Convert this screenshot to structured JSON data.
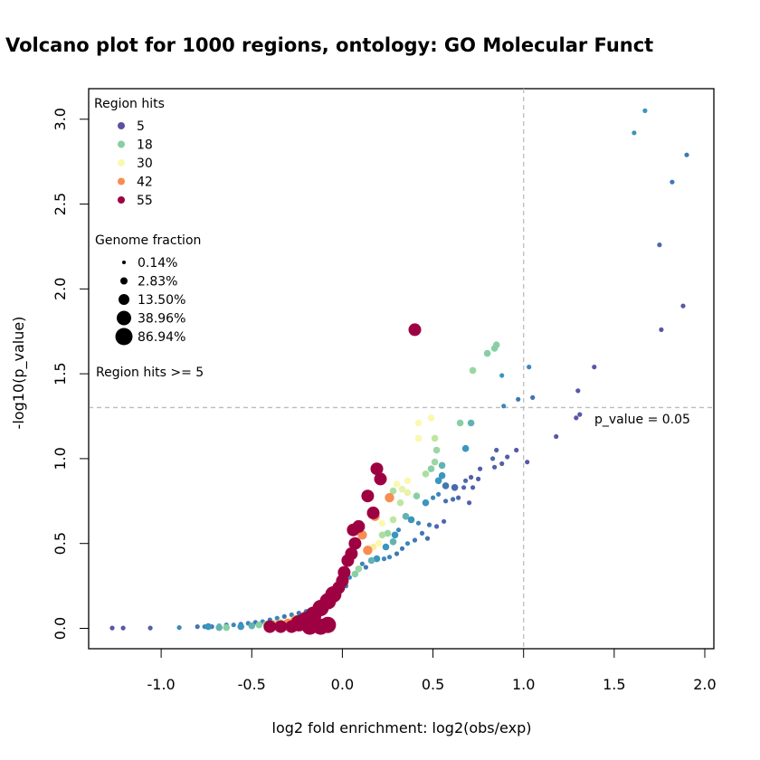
{
  "chart_data": {
    "type": "scatter",
    "title": "Volcano plot for 1000 regions, ontology: GO Molecular Funct",
    "xlabel": "log2 fold enrichment: log2(obs/exp)",
    "ylabel": "-log10(p_value)",
    "xlim": [
      -1.4,
      2.05
    ],
    "ylim": [
      -0.12,
      3.18
    ],
    "xticks": [
      -1.0,
      -0.5,
      0.0,
      0.5,
      1.0,
      1.5,
      2.0
    ],
    "xtick_labels": [
      "-1.0",
      "-0.5",
      "0.0",
      "0.5",
      "1.0",
      "1.5",
      "2.0"
    ],
    "yticks": [
      0.0,
      0.5,
      1.0,
      1.5,
      2.0,
      2.5,
      3.0
    ],
    "ytick_labels": [
      "0.0",
      "0.5",
      "1.0",
      "1.5",
      "2.0",
      "2.5",
      "3.0"
    ],
    "grid": false,
    "reference_lines": [
      {
        "orientation": "horizontal",
        "value": 1.30103,
        "style": "dashed",
        "color": "#bdbdbd",
        "label": "p_value = 0.05"
      },
      {
        "orientation": "vertical",
        "value": 1.0,
        "style": "dashed",
        "color": "#bdbdbd"
      }
    ],
    "legend_position": "top-left",
    "color_legend": {
      "title": "Region hits",
      "entries": [
        {
          "label": "5",
          "color": "#5E4FA2"
        },
        {
          "label": "18",
          "color": "#88CFA4"
        },
        {
          "label": "30",
          "color": "#FBF8B0"
        },
        {
          "label": "42",
          "color": "#F88D52"
        },
        {
          "label": "55",
          "color": "#9E0142"
        }
      ]
    },
    "size_legend": {
      "title": "Genome fraction",
      "entries": [
        {
          "label": "0.14%",
          "size_class": 1
        },
        {
          "label": "2.83%",
          "size_class": 2
        },
        {
          "label": "13.50%",
          "size_class": 3
        },
        {
          "label": "38.96%",
          "size_class": 4
        },
        {
          "label": "86.94%",
          "size_class": 5
        }
      ]
    },
    "filter_note": "Region hits >= 5",
    "points_columns": [
      "log2_fold_enrichment",
      "neg_log10_p",
      "region_hits",
      "genome_fraction_class"
    ],
    "points": [
      [
        1.67,
        3.05,
        14,
        1
      ],
      [
        1.61,
        2.92,
        14,
        1
      ],
      [
        1.9,
        2.79,
        10,
        1
      ],
      [
        1.82,
        2.63,
        10,
        1
      ],
      [
        1.75,
        2.26,
        8,
        1
      ],
      [
        1.88,
        1.9,
        6,
        1
      ],
      [
        1.76,
        1.76,
        6,
        1
      ],
      [
        1.39,
        1.54,
        6,
        1
      ],
      [
        1.3,
        1.4,
        6,
        1
      ],
      [
        1.31,
        1.26,
        6,
        1
      ],
      [
        1.29,
        1.24,
        6,
        1
      ],
      [
        1.18,
        1.13,
        6,
        1
      ],
      [
        1.03,
        1.54,
        12,
        1
      ],
      [
        1.05,
        1.36,
        9,
        1
      ],
      [
        0.97,
        1.35,
        10,
        1
      ],
      [
        0.89,
        1.31,
        12,
        1
      ],
      [
        0.88,
        1.49,
        14,
        1
      ],
      [
        0.85,
        1.67,
        18,
        2
      ],
      [
        0.84,
        1.65,
        18,
        2
      ],
      [
        0.8,
        1.62,
        18,
        2
      ],
      [
        0.72,
        1.52,
        20,
        2
      ],
      [
        0.4,
        1.76,
        55,
        4
      ],
      [
        0.49,
        1.24,
        30,
        2
      ],
      [
        0.42,
        1.21,
        30,
        2
      ],
      [
        0.42,
        1.12,
        30,
        2
      ],
      [
        0.51,
        1.12,
        24,
        2
      ],
      [
        0.65,
        1.21,
        18,
        2
      ],
      [
        0.71,
        1.21,
        16,
        2
      ],
      [
        0.52,
        1.05,
        20,
        2
      ],
      [
        0.68,
        1.06,
        14,
        2
      ],
      [
        0.51,
        0.98,
        20,
        2
      ],
      [
        0.55,
        0.96,
        16,
        2
      ],
      [
        0.49,
        0.94,
        18,
        2
      ],
      [
        0.46,
        0.91,
        22,
        2
      ],
      [
        0.55,
        0.9,
        14,
        2
      ],
      [
        0.53,
        0.87,
        14,
        2
      ],
      [
        0.57,
        0.84,
        10,
        2
      ],
      [
        0.62,
        0.83,
        8,
        2
      ],
      [
        0.85,
        1.05,
        7,
        1
      ],
      [
        0.91,
        1.01,
        7,
        1
      ],
      [
        0.96,
        1.05,
        6,
        1
      ],
      [
        0.83,
        1.0,
        8,
        1
      ],
      [
        0.88,
        0.97,
        7,
        1
      ],
      [
        0.84,
        0.95,
        7,
        1
      ],
      [
        0.76,
        0.94,
        7,
        1
      ],
      [
        1.02,
        0.98,
        6,
        1
      ],
      [
        0.71,
        0.89,
        7,
        1
      ],
      [
        0.68,
        0.87,
        8,
        1
      ],
      [
        0.75,
        0.88,
        7,
        1
      ],
      [
        0.67,
        0.83,
        8,
        1
      ],
      [
        0.72,
        0.83,
        7,
        1
      ],
      [
        0.64,
        0.77,
        8,
        1
      ],
      [
        0.7,
        0.74,
        7,
        1
      ],
      [
        0.61,
        0.76,
        9,
        1
      ],
      [
        0.57,
        0.75,
        9,
        1
      ],
      [
        0.53,
        0.79,
        12,
        1
      ],
      [
        0.5,
        0.77,
        12,
        1
      ],
      [
        0.46,
        0.74,
        14,
        2
      ],
      [
        0.41,
        0.78,
        18,
        2
      ],
      [
        0.36,
        0.87,
        30,
        2
      ],
      [
        0.36,
        0.8,
        28,
        2
      ],
      [
        0.33,
        0.82,
        28,
        2
      ],
      [
        0.3,
        0.85,
        30,
        2
      ],
      [
        0.28,
        0.81,
        22,
        2
      ],
      [
        0.26,
        0.77,
        42,
        3
      ],
      [
        0.32,
        0.74,
        24,
        2
      ],
      [
        0.21,
        0.88,
        55,
        4
      ],
      [
        0.19,
        0.94,
        55,
        4
      ],
      [
        0.14,
        0.78,
        55,
        4
      ],
      [
        0.17,
        0.68,
        55,
        4
      ],
      [
        0.18,
        0.66,
        42,
        3
      ],
      [
        0.22,
        0.62,
        30,
        2
      ],
      [
        0.28,
        0.64,
        24,
        2
      ],
      [
        0.35,
        0.66,
        16,
        2
      ],
      [
        0.38,
        0.64,
        14,
        2
      ],
      [
        0.42,
        0.62,
        12,
        1
      ],
      [
        0.48,
        0.61,
        10,
        1
      ],
      [
        0.52,
        0.6,
        8,
        1
      ],
      [
        0.56,
        0.63,
        8,
        1
      ],
      [
        0.44,
        0.56,
        10,
        1
      ],
      [
        0.47,
        0.53,
        9,
        1
      ],
      [
        0.4,
        0.52,
        10,
        1
      ],
      [
        0.36,
        0.5,
        12,
        1
      ],
      [
        0.33,
        0.47,
        10,
        1
      ],
      [
        0.3,
        0.44,
        10,
        1
      ],
      [
        0.26,
        0.42,
        12,
        1
      ],
      [
        0.23,
        0.41,
        12,
        1
      ],
      [
        0.19,
        0.41,
        14,
        2
      ],
      [
        0.16,
        0.4,
        16,
        2
      ],
      [
        0.24,
        0.48,
        14,
        2
      ],
      [
        0.28,
        0.51,
        16,
        2
      ],
      [
        0.29,
        0.55,
        14,
        2
      ],
      [
        0.31,
        0.58,
        12,
        1
      ],
      [
        0.25,
        0.56,
        20,
        2
      ],
      [
        0.22,
        0.55,
        22,
        2
      ],
      [
        0.2,
        0.5,
        30,
        2
      ],
      [
        0.17,
        0.48,
        32,
        2
      ],
      [
        0.14,
        0.46,
        42,
        3
      ],
      [
        0.11,
        0.55,
        42,
        3
      ],
      [
        0.06,
        0.58,
        55,
        4
      ],
      [
        0.09,
        0.6,
        55,
        4
      ],
      [
        0.07,
        0.5,
        55,
        4
      ],
      [
        0.05,
        0.44,
        55,
        4
      ],
      [
        0.03,
        0.4,
        55,
        4
      ],
      [
        0.01,
        0.33,
        55,
        4
      ],
      [
        0.0,
        0.28,
        55,
        4
      ],
      [
        -0.02,
        0.24,
        55,
        4
      ],
      [
        -0.05,
        0.2,
        55,
        5
      ],
      [
        -0.08,
        0.16,
        55,
        5
      ],
      [
        -0.12,
        0.12,
        55,
        5
      ],
      [
        -0.16,
        0.08,
        55,
        5
      ],
      [
        -0.2,
        0.05,
        55,
        5
      ],
      [
        -0.24,
        0.03,
        55,
        5
      ],
      [
        -0.18,
        0.01,
        55,
        5
      ],
      [
        -0.12,
        0.01,
        55,
        5
      ],
      [
        -0.08,
        0.02,
        55,
        5
      ],
      [
        -0.28,
        0.01,
        55,
        4
      ],
      [
        -0.34,
        0.01,
        55,
        4
      ],
      [
        -0.4,
        0.01,
        55,
        4
      ],
      [
        0.09,
        0.35,
        20,
        2
      ],
      [
        0.07,
        0.32,
        18,
        2
      ],
      [
        0.11,
        0.38,
        12,
        1
      ],
      [
        0.13,
        0.36,
        10,
        1
      ],
      [
        0.04,
        0.3,
        12,
        1
      ],
      [
        0.02,
        0.25,
        10,
        1
      ],
      [
        -0.01,
        0.22,
        12,
        1
      ],
      [
        -0.04,
        0.18,
        10,
        1
      ],
      [
        -0.08,
        0.15,
        12,
        1
      ],
      [
        -0.12,
        0.13,
        14,
        1
      ],
      [
        -0.16,
        0.11,
        10,
        1
      ],
      [
        -0.2,
        0.1,
        12,
        1
      ],
      [
        -0.24,
        0.09,
        10,
        1
      ],
      [
        -0.28,
        0.08,
        12,
        1
      ],
      [
        -0.32,
        0.07,
        10,
        1
      ],
      [
        -0.36,
        0.06,
        12,
        1
      ],
      [
        -0.4,
        0.05,
        10,
        1
      ],
      [
        -0.44,
        0.04,
        12,
        1
      ],
      [
        -0.48,
        0.035,
        10,
        1
      ],
      [
        -0.52,
        0.03,
        12,
        1
      ],
      [
        -0.56,
        0.025,
        10,
        1
      ],
      [
        -0.6,
        0.02,
        12,
        1
      ],
      [
        -0.64,
        0.02,
        10,
        1
      ],
      [
        -0.68,
        0.015,
        12,
        1
      ],
      [
        -0.72,
        0.01,
        10,
        1
      ],
      [
        -0.76,
        0.01,
        12,
        1
      ],
      [
        -0.8,
        0.01,
        10,
        1
      ],
      [
        -0.06,
        0.14,
        18,
        2
      ],
      [
        -0.1,
        0.11,
        22,
        2
      ],
      [
        -0.14,
        0.09,
        28,
        2
      ],
      [
        -0.18,
        0.07,
        32,
        2
      ],
      [
        -0.22,
        0.06,
        36,
        2
      ],
      [
        -0.26,
        0.05,
        40,
        3
      ],
      [
        -0.3,
        0.04,
        30,
        2
      ],
      [
        -0.34,
        0.035,
        26,
        2
      ],
      [
        -0.38,
        0.03,
        22,
        2
      ],
      [
        -0.42,
        0.025,
        20,
        2
      ],
      [
        -0.46,
        0.02,
        18,
        2
      ],
      [
        -0.5,
        0.015,
        16,
        2
      ],
      [
        -0.56,
        0.01,
        14,
        2
      ],
      [
        -0.64,
        0.005,
        18,
        2
      ],
      [
        -0.68,
        0.005,
        16,
        2
      ],
      [
        -0.74,
        0.01,
        14,
        2
      ],
      [
        -0.16,
        0.04,
        42,
        3
      ],
      [
        -0.22,
        0.035,
        44,
        3
      ],
      [
        -0.3,
        0.03,
        42,
        3
      ],
      [
        -0.36,
        0.02,
        38,
        3
      ],
      [
        -0.9,
        0.005,
        12,
        1
      ],
      [
        -1.06,
        0.002,
        7,
        1
      ],
      [
        -1.21,
        0.002,
        6,
        1
      ],
      [
        -1.27,
        0.002,
        6,
        1
      ]
    ]
  }
}
